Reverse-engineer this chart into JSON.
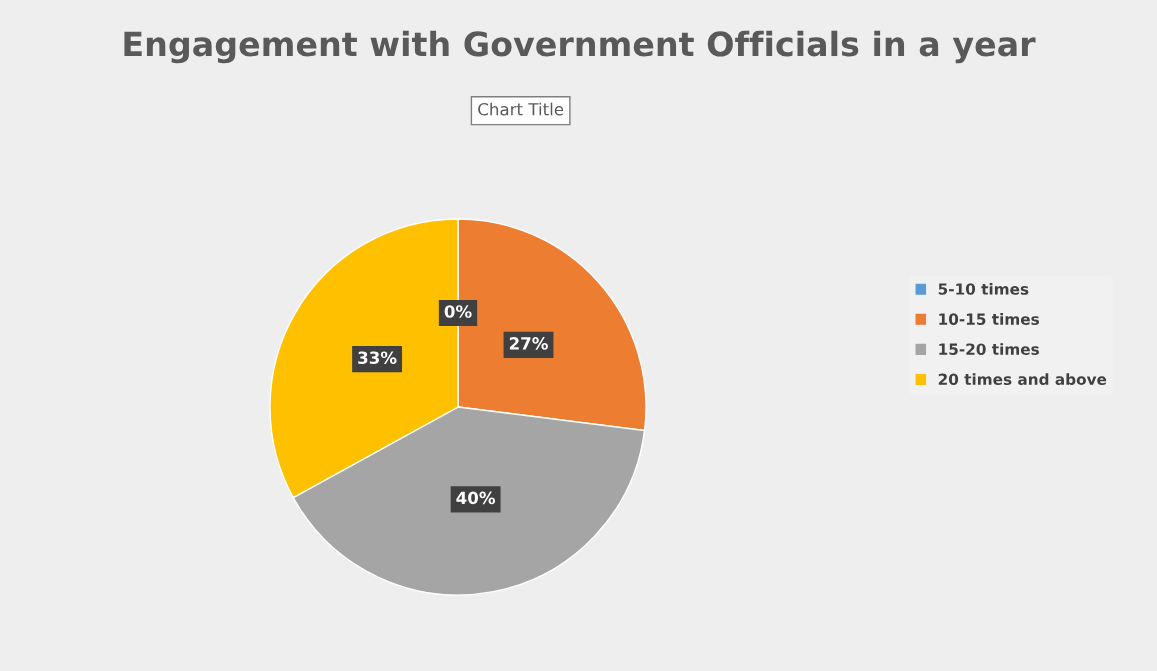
{
  "chart_data": {
    "type": "pie",
    "title": "Engagement with Government Officials in a year",
    "categories": [
      "5-10 times",
      "10-15 times",
      "15-20 times",
      "20 times and above"
    ],
    "values": [
      0,
      27,
      40,
      33
    ],
    "colors": [
      "#5b9bd5",
      "#ed7d31",
      "#a5a5a5",
      "#ffc000"
    ],
    "value_labels": [
      "0%",
      "27%",
      "40%",
      "33%"
    ],
    "annotations": [
      "Chart Title"
    ],
    "legend": "right"
  }
}
